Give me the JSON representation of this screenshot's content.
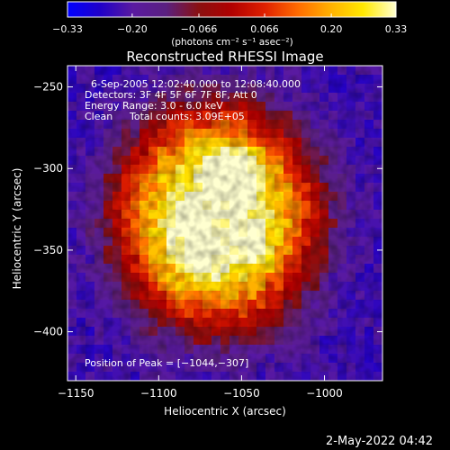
{
  "chart_data": {
    "type": "heatmap",
    "title": "Reconstructed RHESSI Image",
    "xlabel": "Heliocentric X (arcsec)",
    "ylabel": "Heliocentric Y (arcsec)",
    "xlim": [
      -1155,
      -965
    ],
    "ylim": [
      -430,
      -237
    ],
    "x_ticks": [
      -1150,
      -1100,
      -1050,
      -1000
    ],
    "y_ticks": [
      -250,
      -300,
      -350,
      -400
    ],
    "x_tick_labels": [
      "−1150",
      "−1100",
      "−1050",
      "−1000"
    ],
    "y_tick_labels": [
      "−250",
      "−300",
      "−350",
      "−400"
    ],
    "colorbar": {
      "range": [
        -0.33,
        0.33
      ],
      "ticks": [
        -0.33,
        -0.2,
        -0.066,
        0.066,
        0.2,
        0.33
      ],
      "tick_labels": [
        "−0.33",
        "−0.20",
        "−0.066",
        "0.066",
        "0.20",
        "0.33"
      ],
      "unit_label": "(photons cm⁻² s⁻¹ asec⁻²)",
      "colormap": [
        "#0000ff",
        "#2000c8",
        "#5a1aa0",
        "#5a2080",
        "#8a1010",
        "#b00000",
        "#e02000",
        "#ff6a00",
        "#ffb000",
        "#ffe800",
        "#ffffd0"
      ]
    },
    "annotations": {
      "time_range": "6-Sep-2005 12:02:40.000 to 12:08:40.000",
      "detectors": "Detectors: 3F 4F 5F 6F 7F 8F, Att 0",
      "energy_range": "Energy Range: 3.0 - 6.0 keV",
      "clean": "Clean",
      "total_counts": "Total counts: 3.09E+05",
      "peak_position": "Position of Peak = [−1044,−307]"
    },
    "peak": [
      -1044,
      -307
    ],
    "sources": [
      {
        "x": -1063,
        "y": -304,
        "intensity": 0.33
      },
      {
        "x": -1050,
        "y": -305,
        "intensity": 0.33
      },
      {
        "x": -1082,
        "y": -330,
        "intensity": 0.31
      },
      {
        "x": -1075,
        "y": -355,
        "intensity": 0.3
      },
      {
        "x": -1047,
        "y": -345,
        "intensity": 0.29
      }
    ]
  },
  "footer": {
    "timestamp": "2-May-2022 04:42"
  }
}
